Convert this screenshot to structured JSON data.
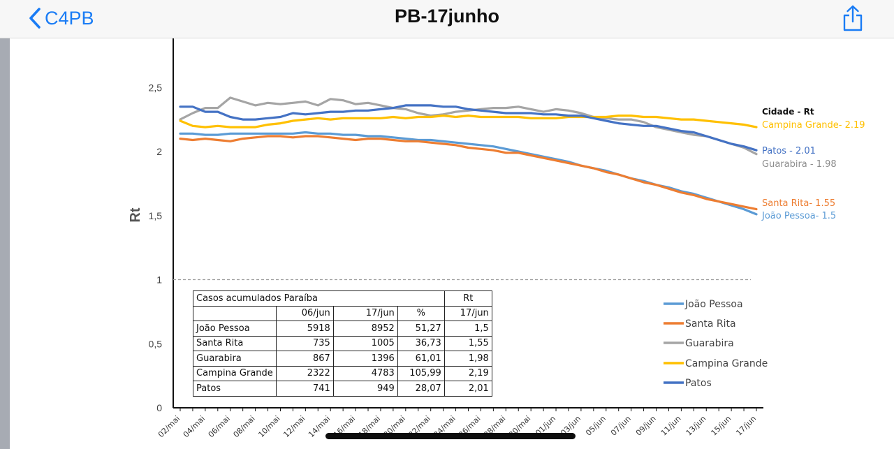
{
  "navbar": {
    "back_label": "C4PB",
    "title": "PB-17junho",
    "back_icon": "chevron-left-icon",
    "share_icon": "share-icon",
    "accent_color": "#1a7cf5"
  },
  "chart_data": {
    "type": "line",
    "ylabel": "Rt",
    "ylim": [
      0,
      2.8
    ],
    "yticks": [
      "2,5",
      "2",
      "1,5",
      "1",
      "0,5",
      "0"
    ],
    "reference_line": 1,
    "x": [
      "02/mai",
      "03/mai",
      "04/mai",
      "05/mai",
      "06/mai",
      "07/mai",
      "08/mai",
      "09/mai",
      "10/mai",
      "11/mai",
      "12/mai",
      "13/mai",
      "14/mai",
      "15/mai",
      "16/mai",
      "17/mai",
      "18/mai",
      "19/mai",
      "20/mai",
      "21/mai",
      "22/mai",
      "23/mai",
      "24/mai",
      "25/mai",
      "26/mai",
      "27/mai",
      "28/mai",
      "29/mai",
      "30/mai",
      "31/mai",
      "01/jun",
      "02/jun",
      "03/jun",
      "04/jun",
      "05/jun",
      "06/jun",
      "07/jun",
      "08/jun",
      "09/jun",
      "10/jun",
      "11/jun",
      "12/jun",
      "13/jun",
      "14/jun",
      "15/jun",
      "16/jun",
      "17/jun"
    ],
    "xtick_labels": [
      "02/mai",
      "04/mai",
      "06/mai",
      "08/mai",
      "10/mai",
      "12/mai",
      "14/mai",
      "16/mai",
      "18/mai",
      "20/mai",
      "22/mai",
      "24/mai",
      "26/mai",
      "28/mai",
      "30/mai",
      "01/jun",
      "03/jun",
      "05/jun",
      "07/jun",
      "09/jun",
      "11/jun",
      "13/jun",
      "15/jun",
      "17/jun"
    ],
    "series": [
      {
        "name": "João Pessoa",
        "color": "#5b9bd5",
        "values": [
          2.14,
          2.14,
          2.13,
          2.13,
          2.14,
          2.14,
          2.14,
          2.14,
          2.14,
          2.14,
          2.15,
          2.14,
          2.14,
          2.13,
          2.13,
          2.12,
          2.12,
          2.11,
          2.1,
          2.09,
          2.09,
          2.08,
          2.07,
          2.06,
          2.05,
          2.04,
          2.02,
          2.0,
          1.98,
          1.96,
          1.94,
          1.92,
          1.89,
          1.87,
          1.85,
          1.82,
          1.79,
          1.77,
          1.74,
          1.72,
          1.69,
          1.67,
          1.64,
          1.61,
          1.58,
          1.55,
          1.51
        ]
      },
      {
        "name": "Santa Rita",
        "color": "#ed7d31",
        "values": [
          2.1,
          2.09,
          2.1,
          2.09,
          2.08,
          2.1,
          2.11,
          2.12,
          2.12,
          2.11,
          2.12,
          2.12,
          2.11,
          2.1,
          2.09,
          2.1,
          2.1,
          2.09,
          2.08,
          2.08,
          2.07,
          2.06,
          2.05,
          2.03,
          2.02,
          2.01,
          1.99,
          1.99,
          1.97,
          1.95,
          1.93,
          1.91,
          1.89,
          1.87,
          1.84,
          1.82,
          1.79,
          1.76,
          1.74,
          1.71,
          1.68,
          1.66,
          1.63,
          1.61,
          1.59,
          1.57,
          1.55
        ]
      },
      {
        "name": "Guarabira",
        "color": "#a5a5a5",
        "values": [
          2.25,
          2.3,
          2.34,
          2.34,
          2.42,
          2.39,
          2.36,
          2.38,
          2.37,
          2.38,
          2.39,
          2.36,
          2.41,
          2.4,
          2.37,
          2.38,
          2.36,
          2.34,
          2.33,
          2.3,
          2.28,
          2.29,
          2.31,
          2.32,
          2.33,
          2.34,
          2.34,
          2.35,
          2.33,
          2.31,
          2.33,
          2.32,
          2.3,
          2.27,
          2.26,
          2.25,
          2.25,
          2.23,
          2.19,
          2.17,
          2.15,
          2.13,
          2.12,
          2.09,
          2.06,
          2.03,
          1.98
        ]
      },
      {
        "name": "Campina Grande",
        "color": "#ffc000",
        "values": [
          2.24,
          2.2,
          2.19,
          2.2,
          2.19,
          2.19,
          2.19,
          2.21,
          2.22,
          2.24,
          2.25,
          2.26,
          2.25,
          2.26,
          2.26,
          2.26,
          2.26,
          2.27,
          2.26,
          2.27,
          2.27,
          2.28,
          2.27,
          2.28,
          2.27,
          2.27,
          2.27,
          2.27,
          2.26,
          2.26,
          2.26,
          2.27,
          2.27,
          2.27,
          2.27,
          2.28,
          2.28,
          2.27,
          2.27,
          2.26,
          2.25,
          2.25,
          2.24,
          2.23,
          2.22,
          2.21,
          2.19
        ]
      },
      {
        "name": "Patos",
        "color": "#4472c4",
        "values": [
          2.35,
          2.35,
          2.31,
          2.31,
          2.27,
          2.25,
          2.25,
          2.26,
          2.27,
          2.3,
          2.29,
          2.3,
          2.31,
          2.31,
          2.32,
          2.32,
          2.33,
          2.34,
          2.36,
          2.36,
          2.36,
          2.35,
          2.35,
          2.33,
          2.32,
          2.31,
          2.3,
          2.3,
          2.3,
          2.29,
          2.29,
          2.28,
          2.28,
          2.26,
          2.24,
          2.22,
          2.21,
          2.2,
          2.2,
          2.18,
          2.16,
          2.15,
          2.12,
          2.09,
          2.06,
          2.04,
          2.01
        ]
      }
    ],
    "end_labels": {
      "header": "Cidade  - Rt",
      "items": [
        {
          "text": "Campina Grande- 2.19",
          "color": "#ffc000"
        },
        {
          "text": "Patos - 2.01",
          "color": "#4472c4"
        },
        {
          "text": "Guarabira - 1.98",
          "color": "#8c8c8c"
        },
        {
          "text": "Santa Rita- 1.55",
          "color": "#ed7d31"
        },
        {
          "text": "João Pessoa- 1.5",
          "color": "#5b9bd5"
        }
      ]
    },
    "legend_position": "bottom-right",
    "table": {
      "title": "Casos acumulados Paraíba",
      "rt_header": "Rt",
      "columns": [
        "06/jun",
        "17/jun",
        "%",
        "17/jun"
      ],
      "rows": [
        {
          "city": "João Pessoa",
          "c06": "5918",
          "c17": "8952",
          "pct": "51,27",
          "rt": "1,5"
        },
        {
          "city": "Santa Rita",
          "c06": "735",
          "c17": "1005",
          "pct": "36,73",
          "rt": "1,55"
        },
        {
          "city": "Guarabira",
          "c06": "867",
          "c17": "1396",
          "pct": "61,01",
          "rt": "1,98"
        },
        {
          "city": "Campina Grande",
          "c06": "2322",
          "c17": "4783",
          "pct": "105,99",
          "rt": "2,19"
        },
        {
          "city": "Patos",
          "c06": "741",
          "c17": "949",
          "pct": "28,07",
          "rt": "2,01"
        }
      ]
    }
  }
}
